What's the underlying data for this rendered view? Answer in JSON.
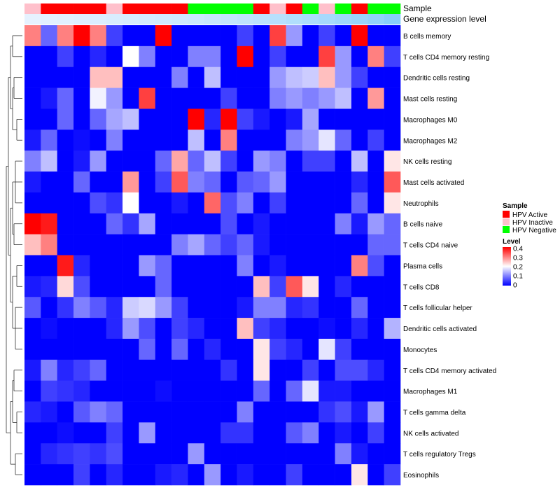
{
  "chart_data": {
    "type": "heatmap",
    "title": "",
    "annotation_labels": {
      "sample": "Sample",
      "gene_expression": "Gene expression level"
    },
    "rows": [
      "B cells memory",
      "T cells CD4 memory resting",
      "Dendritic cells resting",
      "Mast cells resting",
      "Macrophages M0",
      "Macrophages M2",
      "NK cells resting",
      "Mast cells activated",
      "Neutrophils",
      "B cells naive",
      "T cells CD4 naive",
      "Plasma cells",
      "T cells CD8",
      "T cells follicular helper",
      "Dendritic cells activated",
      "Monocytes",
      "T cells CD4 memory activated",
      "Macrophages M1",
      "T cells gamma delta",
      "NK cells activated",
      "T cells regulatory  Tregs",
      "Eosinophils"
    ],
    "sample_groups": [
      "Inactive",
      "Active",
      "Active",
      "Active",
      "Active",
      "Inactive",
      "Active",
      "Active",
      "Active",
      "Active",
      "Negative",
      "Negative",
      "Negative",
      "Negative",
      "Active",
      "Inactive",
      "Active",
      "Negative",
      "Inactive",
      "Negative",
      "Active",
      "Negative",
      "Negative"
    ],
    "gene_expression_levels": [
      0.05,
      0.07,
      0.09,
      0.11,
      0.13,
      0.15,
      0.17,
      0.19,
      0.21,
      0.23,
      0.25,
      0.28,
      0.31,
      0.34,
      0.37,
      0.4,
      0.44,
      0.48,
      0.52,
      0.57,
      0.62,
      0.68,
      0.75
    ],
    "values": [
      [
        0.3,
        0.08,
        0.3,
        0.4,
        0.3,
        0.05,
        0.0,
        0.0,
        0.4,
        0.0,
        0.0,
        0.0,
        0.0,
        0.05,
        0.0,
        0.35,
        0.12,
        0.0,
        0.05,
        0.0,
        0.4,
        0.0,
        0.0
      ],
      [
        0.0,
        0.0,
        0.05,
        0.0,
        0.03,
        0.0,
        0.2,
        0.1,
        0.0,
        0.0,
        0.1,
        0.1,
        0.0,
        0.4,
        0.0,
        0.05,
        0.0,
        0.0,
        0.35,
        0.12,
        0.0,
        0.3,
        0.05
      ],
      [
        0.0,
        0.0,
        0.0,
        0.0,
        0.25,
        0.25,
        0.0,
        0.0,
        0.0,
        0.1,
        0.0,
        0.15,
        0.0,
        0.0,
        0.0,
        0.12,
        0.15,
        0.16,
        0.25,
        0.12,
        0.05,
        0.0,
        0.0
      ],
      [
        0.0,
        0.02,
        0.08,
        0.0,
        0.19,
        0.12,
        0.0,
        0.35,
        0.0,
        0.0,
        0.0,
        0.0,
        0.05,
        0.0,
        0.0,
        0.1,
        0.12,
        0.1,
        0.12,
        0.15,
        0.0,
        0.28,
        0.0
      ],
      [
        0.0,
        0.0,
        0.08,
        0.0,
        0.08,
        0.13,
        0.15,
        0.0,
        0.0,
        0.0,
        0.4,
        0.03,
        0.4,
        0.05,
        0.02,
        0.0,
        0.02,
        0.13,
        0.0,
        0.0,
        0.0,
        0.0,
        0.0
      ],
      [
        0.02,
        0.08,
        0.0,
        0.01,
        0.0,
        0.1,
        0.0,
        0.0,
        0.0,
        0.0,
        0.15,
        0.0,
        0.3,
        0.0,
        0.0,
        0.0,
        0.1,
        0.12,
        0.18,
        0.08,
        0.0,
        0.05,
        0.0
      ],
      [
        0.1,
        0.15,
        0.0,
        0.02,
        0.12,
        0.0,
        0.0,
        0.0,
        0.08,
        0.27,
        0.08,
        0.15,
        0.05,
        0.0,
        0.12,
        0.1,
        0.0,
        0.05,
        0.05,
        0.0,
        0.15,
        0.0,
        0.22
      ],
      [
        0.02,
        0.0,
        0.0,
        0.08,
        0.0,
        0.0,
        0.28,
        0.0,
        0.05,
        0.33,
        0.1,
        0.08,
        0.0,
        0.07,
        0.08,
        0.12,
        0.0,
        0.0,
        0.0,
        0.0,
        0.03,
        0.0,
        0.33
      ],
      [
        0.0,
        0.0,
        0.0,
        0.0,
        0.06,
        0.04,
        0.2,
        0.0,
        0.0,
        0.02,
        0.0,
        0.32,
        0.06,
        0.1,
        0.0,
        0.05,
        0.0,
        0.0,
        0.0,
        0.0,
        0.08,
        0.0,
        0.22
      ],
      [
        0.4,
        0.38,
        0.0,
        0.0,
        0.0,
        0.08,
        0.04,
        0.13,
        0.0,
        0.0,
        0.0,
        0.0,
        0.06,
        0.0,
        0.02,
        0.0,
        0.0,
        0.0,
        0.0,
        0.1,
        0.02,
        0.12,
        0.08
      ],
      [
        0.25,
        0.3,
        0.0,
        0.0,
        0.0,
        0.0,
        0.0,
        0.0,
        0.0,
        0.1,
        0.13,
        0.08,
        0.05,
        0.08,
        0.02,
        0.0,
        0.0,
        0.0,
        0.0,
        0.0,
        0.0,
        0.08,
        0.08
      ],
      [
        0.0,
        0.0,
        0.38,
        0.03,
        0.0,
        0.0,
        0.0,
        0.12,
        0.08,
        0.0,
        0.0,
        0.0,
        0.0,
        0.1,
        0.0,
        0.02,
        0.0,
        0.0,
        0.0,
        0.0,
        0.3,
        0.06,
        0.0
      ],
      [
        0.02,
        0.03,
        0.23,
        0.06,
        0.0,
        0.0,
        0.0,
        0.0,
        0.08,
        0.0,
        0.0,
        0.0,
        0.0,
        0.0,
        0.25,
        0.05,
        0.33,
        0.22,
        0.0,
        0.03,
        0.0,
        0.0,
        0.0
      ],
      [
        0.07,
        0.0,
        0.04,
        0.1,
        0.07,
        0.03,
        0.16,
        0.17,
        0.12,
        0.05,
        0.0,
        0.0,
        0.0,
        0.02,
        0.1,
        0.1,
        0.03,
        0.04,
        0.0,
        0.0,
        0.08,
        0.0,
        0.0
      ],
      [
        0.0,
        0.01,
        0.0,
        0.0,
        0.0,
        0.03,
        0.12,
        0.06,
        0.0,
        0.05,
        0.03,
        0.0,
        0.0,
        0.25,
        0.05,
        0.03,
        0.0,
        0.0,
        0.01,
        0.0,
        0.03,
        0.0,
        0.14
      ],
      [
        0.0,
        0.0,
        0.0,
        0.0,
        0.0,
        0.0,
        0.0,
        0.08,
        0.0,
        0.08,
        0.0,
        0.03,
        0.0,
        0.0,
        0.22,
        0.05,
        0.03,
        0.0,
        0.18,
        0.05,
        0.0,
        0.0,
        0.0
      ],
      [
        0.02,
        0.1,
        0.03,
        0.05,
        0.08,
        0.0,
        0.0,
        0.0,
        0.0,
        0.0,
        0.0,
        0.0,
        0.04,
        0.0,
        0.22,
        0.0,
        0.0,
        0.05,
        0.0,
        0.06,
        0.06,
        0.03,
        0.0
      ],
      [
        0.0,
        0.05,
        0.04,
        0.03,
        0.0,
        0.0,
        0.0,
        0.0,
        0.01,
        0.0,
        0.0,
        0.0,
        0.0,
        0.0,
        0.08,
        0.0,
        0.08,
        0.18,
        0.02,
        0.02,
        0.0,
        0.0,
        0.0
      ],
      [
        0.03,
        0.02,
        0.0,
        0.07,
        0.1,
        0.08,
        0.0,
        0.0,
        0.0,
        0.0,
        0.0,
        0.0,
        0.0,
        0.1,
        0.0,
        0.0,
        0.0,
        0.0,
        0.04,
        0.06,
        0.02,
        0.12,
        0.0
      ],
      [
        0.0,
        0.0,
        0.01,
        0.0,
        0.0,
        0.05,
        0.0,
        0.12,
        0.0,
        0.0,
        0.0,
        0.0,
        0.04,
        0.04,
        0.0,
        0.0,
        0.07,
        0.1,
        0.0,
        0.02,
        0.0,
        0.05,
        0.0
      ],
      [
        0.0,
        0.03,
        0.04,
        0.05,
        0.04,
        0.06,
        0.0,
        0.0,
        0.0,
        0.0,
        0.12,
        0.0,
        0.0,
        0.0,
        0.0,
        0.0,
        0.0,
        0.0,
        0.0,
        0.1,
        0.02,
        0.0,
        0.0
      ],
      [
        0.0,
        0.0,
        0.0,
        0.05,
        0.0,
        0.03,
        0.0,
        0.0,
        0.02,
        0.03,
        0.0,
        0.12,
        0.0,
        0.02,
        0.0,
        0.0,
        0.05,
        0.0,
        0.0,
        0.0,
        0.22,
        0.0,
        0.05
      ]
    ],
    "legend": {
      "sample_title": "Sample",
      "sample_entries": [
        {
          "key": "Active",
          "label": "HPV Active",
          "color": "#ff0000"
        },
        {
          "key": "Inactive",
          "label": "HPV Inactive",
          "color": "#ffc0cb"
        },
        {
          "key": "Negative",
          "label": "HPV Negative",
          "color": "#00ff00"
        }
      ],
      "level_title": "Level",
      "level_ticks": [
        "0.4",
        "0.3",
        "0.2",
        "0.1",
        "0"
      ],
      "level_range": [
        0,
        0.4
      ]
    },
    "colors": {
      "low": "#0000ff",
      "mid": "#ffffff",
      "high": "#ff0000",
      "expression_low": "#e6f2ff",
      "expression_high": "#87cefa",
      "dendrogram": "#333333"
    }
  }
}
